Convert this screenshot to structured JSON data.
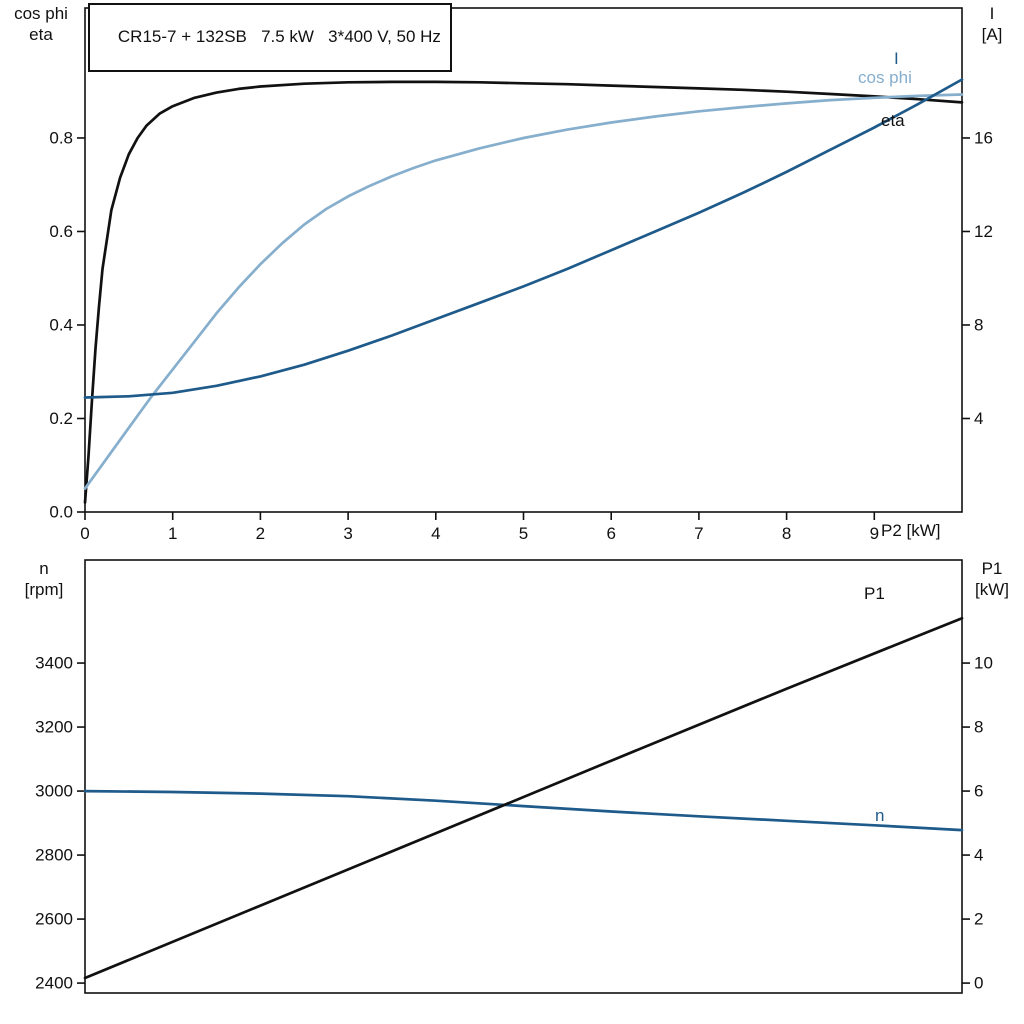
{
  "colors": {
    "black": "#111111",
    "dark_blue": "#1e5a8a",
    "light_blue": "#86aecd",
    "background": "#ffffff"
  },
  "chart_data": [
    {
      "type": "line",
      "title": "CR15-7 + 132SB   7.5 kW   3*400 V, 50 Hz",
      "xlabel": "P2 [kW]",
      "x_range": [
        0,
        10
      ],
      "x_ticks": [
        {
          "v": 0,
          "label": "0"
        },
        {
          "v": 1,
          "label": "1"
        },
        {
          "v": 2,
          "label": "2"
        },
        {
          "v": 3,
          "label": "3"
        },
        {
          "v": 4,
          "label": "4"
        },
        {
          "v": 5,
          "label": "5"
        },
        {
          "v": 6,
          "label": "6"
        },
        {
          "v": 7,
          "label": "7"
        },
        {
          "v": 8,
          "label": "8"
        },
        {
          "v": 9,
          "label": "9"
        }
      ],
      "y_left_title": [
        "cos phi",
        "eta"
      ],
      "y_left_range": [
        0,
        1.078
      ],
      "y_left_ticks": [
        {
          "v": 0.0,
          "label": "0.0"
        },
        {
          "v": 0.2,
          "label": "0.2"
        },
        {
          "v": 0.4,
          "label": "0.4"
        },
        {
          "v": 0.6,
          "label": "0.6"
        },
        {
          "v": 0.8,
          "label": "0.8"
        }
      ],
      "y_right_title": [
        "I",
        "[A]"
      ],
      "y_right_range": [
        0,
        21.56
      ],
      "y_right_ticks": [
        {
          "v": 4,
          "label": "4"
        },
        {
          "v": 8,
          "label": "8"
        },
        {
          "v": 12,
          "label": "12"
        },
        {
          "v": 16,
          "label": "16"
        }
      ],
      "grid": false,
      "legend": "inline-labels",
      "series": [
        {
          "name": "eta",
          "axis": "left",
          "color": "black",
          "x": [
            0,
            0.04,
            0.08,
            0.12,
            0.16,
            0.2,
            0.3,
            0.4,
            0.5,
            0.6,
            0.7,
            0.85,
            1,
            1.25,
            1.5,
            1.75,
            2,
            2.5,
            3,
            3.5,
            4,
            4.5,
            5,
            5.5,
            6,
            6.5,
            7,
            7.5,
            8,
            8.5,
            9,
            9.5,
            10
          ],
          "y": [
            0.02,
            0.12,
            0.24,
            0.35,
            0.44,
            0.52,
            0.645,
            0.715,
            0.765,
            0.8,
            0.826,
            0.852,
            0.868,
            0.886,
            0.897,
            0.905,
            0.91,
            0.916,
            0.919,
            0.92,
            0.92,
            0.919,
            0.917,
            0.915,
            0.912,
            0.909,
            0.906,
            0.903,
            0.899,
            0.894,
            0.889,
            0.883,
            0.876
          ]
        },
        {
          "name": "cos phi",
          "axis": "left",
          "color": "light_blue",
          "x": [
            0,
            0.25,
            0.5,
            0.75,
            1,
            1.25,
            1.5,
            1.75,
            2,
            2.25,
            2.5,
            2.75,
            3,
            3.25,
            3.5,
            3.75,
            4,
            4.5,
            5,
            5.5,
            6,
            6.5,
            7,
            7.5,
            8,
            8.5,
            9,
            9.5,
            10
          ],
          "y": [
            0.05,
            0.115,
            0.18,
            0.245,
            0.305,
            0.365,
            0.425,
            0.48,
            0.53,
            0.575,
            0.615,
            0.648,
            0.675,
            0.698,
            0.718,
            0.736,
            0.752,
            0.778,
            0.8,
            0.818,
            0.833,
            0.846,
            0.857,
            0.866,
            0.874,
            0.881,
            0.886,
            0.89,
            0.893
          ]
        },
        {
          "name": "I",
          "axis": "right",
          "color": "dark_blue",
          "x": [
            0,
            0.5,
            1,
            1.5,
            2,
            2.5,
            3,
            3.5,
            4,
            4.5,
            5,
            5.5,
            6,
            6.5,
            7,
            7.5,
            8,
            8.5,
            9,
            9.5,
            10
          ],
          "y": [
            4.9,
            4.95,
            5.1,
            5.4,
            5.8,
            6.3,
            6.9,
            7.55,
            8.25,
            8.95,
            9.65,
            10.4,
            11.2,
            12.0,
            12.8,
            13.65,
            14.55,
            15.5,
            16.45,
            17.45,
            18.5
          ]
        }
      ]
    },
    {
      "type": "line",
      "title": "",
      "xlabel": "",
      "x_range": [
        0,
        10
      ],
      "x_ticks": [],
      "y_left_title": [
        "n",
        "[rpm]"
      ],
      "y_left_range": [
        2369,
        3722
      ],
      "y_left_ticks": [
        {
          "v": 2400,
          "label": "2400"
        },
        {
          "v": 2600,
          "label": "2600"
        },
        {
          "v": 2800,
          "label": "2800"
        },
        {
          "v": 3000,
          "label": "3000"
        },
        {
          "v": 3200,
          "label": "3200"
        },
        {
          "v": 3400,
          "label": "3400"
        }
      ],
      "y_right_title": [
        "P1",
        "[kW]"
      ],
      "y_right_range": [
        -0.31,
        13.22
      ],
      "y_right_ticks": [
        {
          "v": 0,
          "label": "0"
        },
        {
          "v": 2,
          "label": "2"
        },
        {
          "v": 4,
          "label": "4"
        },
        {
          "v": 6,
          "label": "6"
        },
        {
          "v": 8,
          "label": "8"
        },
        {
          "v": 10,
          "label": "10"
        }
      ],
      "grid": false,
      "legend": "inline-labels",
      "series": [
        {
          "name": "n",
          "axis": "left",
          "color": "dark_blue",
          "x": [
            0,
            1,
            2,
            3,
            4,
            5,
            6,
            7,
            8,
            9,
            10
          ],
          "y": [
            3000,
            2997,
            2992,
            2984,
            2970,
            2953,
            2936,
            2921,
            2907,
            2893,
            2878
          ]
        },
        {
          "name": "P1",
          "axis": "right",
          "color": "black",
          "x": [
            0,
            2,
            4,
            6,
            8,
            10
          ],
          "y": [
            0.16,
            2.42,
            4.68,
            6.95,
            9.2,
            11.4
          ]
        }
      ]
    }
  ]
}
